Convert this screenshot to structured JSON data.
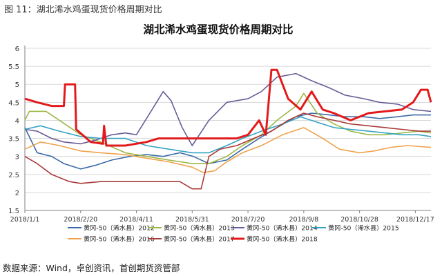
{
  "caption": "图 11：湖北浠水鸡蛋现货价格周期对比",
  "source": "数据来源：Wind，卓创资讯，首创期货资管部",
  "colors": {
    "2012": "#3b6aa8",
    "2013": "#9bb846",
    "2014": "#6a5b98",
    "2015": "#33a3c4",
    "2016": "#f0a24a",
    "2017": "#a93a38",
    "2018": "#e31a1c",
    "grid": "#d8d8d8",
    "axis": "#7f7f7f"
  },
  "chart_data": {
    "type": "line",
    "title": "湖北浠水鸡蛋现货价格周期对比",
    "xlabel": "",
    "ylabel": "",
    "ylim": [
      1.5,
      6
    ],
    "yticks": [
      "1.5",
      "2",
      "2.5",
      "3",
      "3.5",
      "4",
      "4.5",
      "5",
      "5.5",
      "6"
    ],
    "xlim": [
      "2018/1/1",
      "2018/12/31"
    ],
    "xticks": [
      "2018/1/1",
      "2018/2/20",
      "2018/4/11",
      "2018/5/31",
      "2018/7/20",
      "2018/9/8",
      "2018/10/28",
      "2018/12/17"
    ],
    "grid": "horizontal",
    "legend_position": "bottom",
    "series": [
      {
        "name": "黄冈-50（浠水县）2012",
        "key": "2012",
        "points": [
          [
            "2018/1/1",
            3.8
          ],
          [
            "2018/1/12",
            3.1
          ],
          [
            "2018/1/25",
            3.0
          ],
          [
            "2018/2/5",
            2.8
          ],
          [
            "2018/2/20",
            2.65
          ],
          [
            "2018/3/5",
            2.75
          ],
          [
            "2018/3/20",
            2.9
          ],
          [
            "2018/4/5",
            3.0
          ],
          [
            "2018/4/20",
            3.05
          ],
          [
            "2018/5/5",
            3.0
          ],
          [
            "2018/5/20",
            3.1
          ],
          [
            "2018/6/1",
            3.0
          ],
          [
            "2018/6/15",
            2.8
          ],
          [
            "2018/7/1",
            2.9
          ],
          [
            "2018/7/15",
            3.2
          ],
          [
            "2018/7/30",
            3.5
          ],
          [
            "2018/8/15",
            3.8
          ],
          [
            "2018/9/1",
            4.1
          ],
          [
            "2018/9/15",
            4.2
          ],
          [
            "2018/10/1",
            4.15
          ],
          [
            "2018/10/15",
            4.1
          ],
          [
            "2018/11/1",
            4.1
          ],
          [
            "2018/11/15",
            4.05
          ],
          [
            "2018/12/1",
            4.1
          ],
          [
            "2018/12/15",
            4.15
          ],
          [
            "2018/12/31",
            4.15
          ]
        ]
      },
      {
        "name": "黄冈-50（浠水县）2013",
        "key": "2013",
        "points": [
          [
            "2018/1/1",
            4.0
          ],
          [
            "2018/1/5",
            4.25
          ],
          [
            "2018/1/20",
            4.25
          ],
          [
            "2018/2/1",
            4.0
          ],
          [
            "2018/2/20",
            3.6
          ],
          [
            "2018/3/10",
            3.4
          ],
          [
            "2018/4/1",
            3.1
          ],
          [
            "2018/4/20",
            3.0
          ],
          [
            "2018/5/10",
            2.9
          ],
          [
            "2018/5/31",
            2.8
          ],
          [
            "2018/6/15",
            2.8
          ],
          [
            "2018/7/1",
            3.0
          ],
          [
            "2018/7/15",
            3.3
          ],
          [
            "2018/8/1",
            3.6
          ],
          [
            "2018/8/15",
            4.0
          ],
          [
            "2018/9/1",
            4.4
          ],
          [
            "2018/9/8",
            4.75
          ],
          [
            "2018/9/20",
            4.2
          ],
          [
            "2018/10/5",
            3.9
          ],
          [
            "2018/10/20",
            3.7
          ],
          [
            "2018/11/5",
            3.6
          ],
          [
            "2018/11/20",
            3.6
          ],
          [
            "2018/12/5",
            3.65
          ],
          [
            "2018/12/20",
            3.7
          ],
          [
            "2018/12/31",
            3.65
          ]
        ]
      },
      {
        "name": "黄冈-50（浠水县）2014",
        "key": "2014",
        "points": [
          [
            "2018/1/1",
            3.75
          ],
          [
            "2018/1/12",
            3.7
          ],
          [
            "2018/1/25",
            3.5
          ],
          [
            "2018/2/5",
            3.4
          ],
          [
            "2018/2/20",
            3.35
          ],
          [
            "2018/3/5",
            3.45
          ],
          [
            "2018/3/20",
            3.6
          ],
          [
            "2018/4/1",
            3.65
          ],
          [
            "2018/4/11",
            3.6
          ],
          [
            "2018/4/25",
            4.3
          ],
          [
            "2018/5/5",
            4.8
          ],
          [
            "2018/5/12",
            4.55
          ],
          [
            "2018/5/22",
            3.8
          ],
          [
            "2018/5/31",
            3.3
          ],
          [
            "2018/6/15",
            4.0
          ],
          [
            "2018/7/1",
            4.5
          ],
          [
            "2018/7/20",
            4.6
          ],
          [
            "2018/8/1",
            4.8
          ],
          [
            "2018/8/15",
            5.2
          ],
          [
            "2018/9/1",
            5.3
          ],
          [
            "2018/9/15",
            5.1
          ],
          [
            "2018/10/1",
            4.9
          ],
          [
            "2018/10/15",
            4.7
          ],
          [
            "2018/11/1",
            4.6
          ],
          [
            "2018/11/15",
            4.5
          ],
          [
            "2018/12/1",
            4.45
          ],
          [
            "2018/12/15",
            4.3
          ],
          [
            "2018/12/31",
            4.25
          ]
        ]
      },
      {
        "name": "黄冈-50（浠水县）2015",
        "key": "2015",
        "points": [
          [
            "2018/1/1",
            3.75
          ],
          [
            "2018/1/15",
            3.85
          ],
          [
            "2018/2/1",
            3.7
          ],
          [
            "2018/2/20",
            3.55
          ],
          [
            "2018/3/10",
            3.5
          ],
          [
            "2018/4/1",
            3.5
          ],
          [
            "2018/4/20",
            3.3
          ],
          [
            "2018/5/10",
            3.2
          ],
          [
            "2018/5/31",
            3.1
          ],
          [
            "2018/6/15",
            3.1
          ],
          [
            "2018/7/1",
            3.3
          ],
          [
            "2018/7/15",
            3.5
          ],
          [
            "2018/8/1",
            3.7
          ],
          [
            "2018/8/20",
            3.9
          ],
          [
            "2018/9/5",
            4.1
          ],
          [
            "2018/9/20",
            3.95
          ],
          [
            "2018/10/5",
            3.8
          ],
          [
            "2018/10/20",
            3.75
          ],
          [
            "2018/11/5",
            3.7
          ],
          [
            "2018/11/20",
            3.65
          ],
          [
            "2018/12/5",
            3.6
          ],
          [
            "2018/12/20",
            3.6
          ],
          [
            "2018/12/31",
            3.55
          ]
        ]
      },
      {
        "name": "黄冈-50（浠水县）2016",
        "key": "2016",
        "points": [
          [
            "2018/1/1",
            3.2
          ],
          [
            "2018/1/15",
            3.4
          ],
          [
            "2018/2/1",
            3.3
          ],
          [
            "2018/2/20",
            3.15
          ],
          [
            "2018/3/10",
            3.1
          ],
          [
            "2018/4/1",
            3.05
          ],
          [
            "2018/4/20",
            2.95
          ],
          [
            "2018/5/10",
            2.85
          ],
          [
            "2018/5/31",
            2.7
          ],
          [
            "2018/6/10",
            2.55
          ],
          [
            "2018/6/20",
            2.6
          ],
          [
            "2018/7/1",
            2.85
          ],
          [
            "2018/7/15",
            3.1
          ],
          [
            "2018/8/1",
            3.3
          ],
          [
            "2018/8/20",
            3.6
          ],
          [
            "2018/9/8",
            3.8
          ],
          [
            "2018/9/25",
            3.5
          ],
          [
            "2018/10/10",
            3.2
          ],
          [
            "2018/10/28",
            3.1
          ],
          [
            "2018/11/10",
            3.15
          ],
          [
            "2018/11/25",
            3.25
          ],
          [
            "2018/12/10",
            3.3
          ],
          [
            "2018/12/31",
            3.25
          ]
        ]
      },
      {
        "name": "黄冈-50（浠水县）2017",
        "key": "2017",
        "points": [
          [
            "2018/1/1",
            3.0
          ],
          [
            "2018/1/12",
            2.8
          ],
          [
            "2018/1/25",
            2.5
          ],
          [
            "2018/2/10",
            2.3
          ],
          [
            "2018/2/20",
            2.25
          ],
          [
            "2018/3/10",
            2.3
          ],
          [
            "2018/4/1",
            2.3
          ],
          [
            "2018/4/11",
            2.3
          ],
          [
            "2018/5/1",
            2.3
          ],
          [
            "2018/5/20",
            2.3
          ],
          [
            "2018/5/31",
            2.1
          ],
          [
            "2018/6/8",
            2.1
          ],
          [
            "2018/6/15",
            3.0
          ],
          [
            "2018/6/25",
            3.2
          ],
          [
            "2018/7/10",
            3.3
          ],
          [
            "2018/7/25",
            3.5
          ],
          [
            "2018/8/10",
            3.7
          ],
          [
            "2018/8/25",
            4.0
          ],
          [
            "2018/9/8",
            4.2
          ],
          [
            "2018/9/20",
            4.1
          ],
          [
            "2018/10/5",
            4.0
          ],
          [
            "2018/10/20",
            3.9
          ],
          [
            "2018/11/5",
            3.85
          ],
          [
            "2018/11/20",
            3.8
          ],
          [
            "2018/12/5",
            3.75
          ],
          [
            "2018/12/20",
            3.7
          ],
          [
            "2018/12/31",
            3.7
          ]
        ]
      },
      {
        "name": "黄冈-50（浠水县）2018",
        "key": "2018",
        "points": [
          [
            "2018/1/1",
            4.6
          ],
          [
            "2018/1/12",
            4.5
          ],
          [
            "2018/1/25",
            4.4
          ],
          [
            "2018/2/5",
            4.4
          ],
          [
            "2018/2/6",
            5.0
          ],
          [
            "2018/2/15",
            5.0
          ],
          [
            "2018/2/16",
            3.75
          ],
          [
            "2018/3/1",
            3.4
          ],
          [
            "2018/3/12",
            3.35
          ],
          [
            "2018/3/13",
            3.85
          ],
          [
            "2018/3/15",
            3.3
          ],
          [
            "2018/4/1",
            3.3
          ],
          [
            "2018/4/20",
            3.4
          ],
          [
            "2018/5/1",
            3.5
          ],
          [
            "2018/5/31",
            3.5
          ],
          [
            "2018/6/20",
            3.5
          ],
          [
            "2018/7/10",
            3.5
          ],
          [
            "2018/7/20",
            3.6
          ],
          [
            "2018/7/30",
            4.0
          ],
          [
            "2018/8/5",
            3.6
          ],
          [
            "2018/8/10",
            5.4
          ],
          [
            "2018/8/15",
            5.4
          ],
          [
            "2018/8/25",
            4.6
          ],
          [
            "2018/9/5",
            4.3
          ],
          [
            "2018/9/15",
            4.8
          ],
          [
            "2018/9/25",
            4.3
          ],
          [
            "2018/10/5",
            4.2
          ],
          [
            "2018/10/20",
            4.0
          ],
          [
            "2018/11/5",
            4.2
          ],
          [
            "2018/11/20",
            4.25
          ],
          [
            "2018/12/5",
            4.3
          ],
          [
            "2018/12/15",
            4.5
          ],
          [
            "2018/12/22",
            4.85
          ],
          [
            "2018/12/28",
            4.85
          ],
          [
            "2018/12/31",
            4.5
          ]
        ]
      }
    ]
  }
}
